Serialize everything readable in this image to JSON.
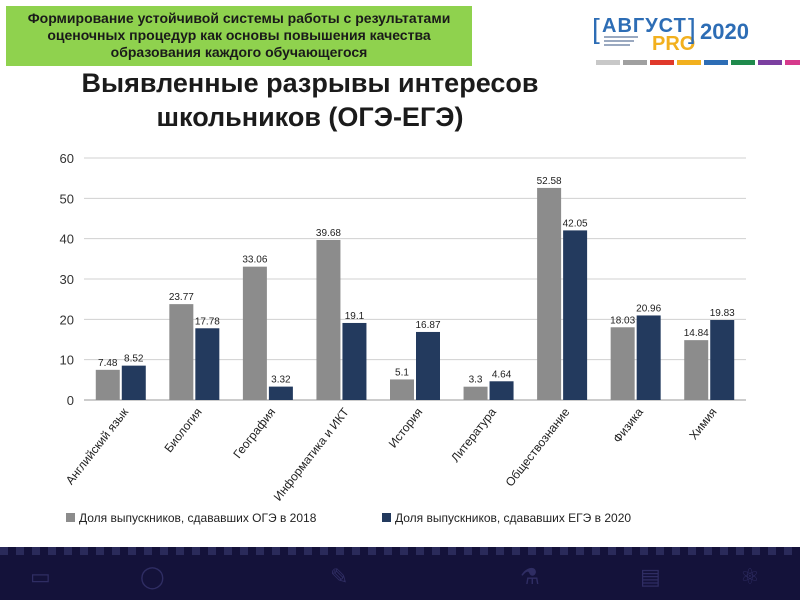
{
  "header": {
    "banner_lines": [
      "Формирование устойчивой системы работы с результатами",
      "оценочных процедур как основы повышения качества",
      "образования каждого обучающегося"
    ],
    "brand_main": "АВГУСТ",
    "brand_pro": "PRO",
    "brand_year": "2020",
    "brand_colors": [
      "#c8c8c8",
      "#a0a0a0",
      "#e0392b",
      "#f2b01e",
      "#2d6db5",
      "#1f8a4c",
      "#7b3fa0",
      "#d63a8c"
    ]
  },
  "title_lines": [
    "Выявленные разрывы интересов",
    "школьников (ОГЭ-ЕГЭ)"
  ],
  "chart_data": {
    "type": "bar",
    "categories": [
      "Английский язык",
      "Биология",
      "География",
      "Информатика и ИКТ",
      "История",
      "Литература",
      "Обществознание",
      "Физика",
      "Химия"
    ],
    "series": [
      {
        "name": "Доля выпускников, сдававших ОГЭ в 2018",
        "color": "#8c8c8c",
        "values": [
          7.48,
          23.77,
          33.06,
          39.68,
          5.1,
          3.3,
          52.58,
          18.03,
          14.84
        ]
      },
      {
        "name": "Доля выпускников, сдававших ЕГЭ в 2020",
        "color": "#233a5e",
        "values": [
          8.52,
          17.78,
          3.32,
          19.1,
          16.87,
          4.64,
          42.05,
          20.96,
          19.83
        ]
      }
    ],
    "data_labels": [
      [
        "7.48",
        "23.77",
        "33.06",
        "39.68",
        "5.1",
        "3.3",
        "52.58",
        "18.03",
        "14.84"
      ],
      [
        "8.52",
        "17.78",
        "3.32",
        "19.1",
        "16.87",
        "4.64",
        "42.05",
        "20.96",
        "19.83"
      ]
    ],
    "ylim": [
      0,
      60
    ],
    "yticks": [
      0,
      10,
      20,
      30,
      40,
      50,
      60
    ],
    "grid": true,
    "legend": "bottom"
  },
  "footer": {
    "icons": [
      "abc-icon",
      "globe-icon",
      "pencil-icon",
      "flask-icon",
      "book-icon",
      "atom-icon"
    ]
  }
}
